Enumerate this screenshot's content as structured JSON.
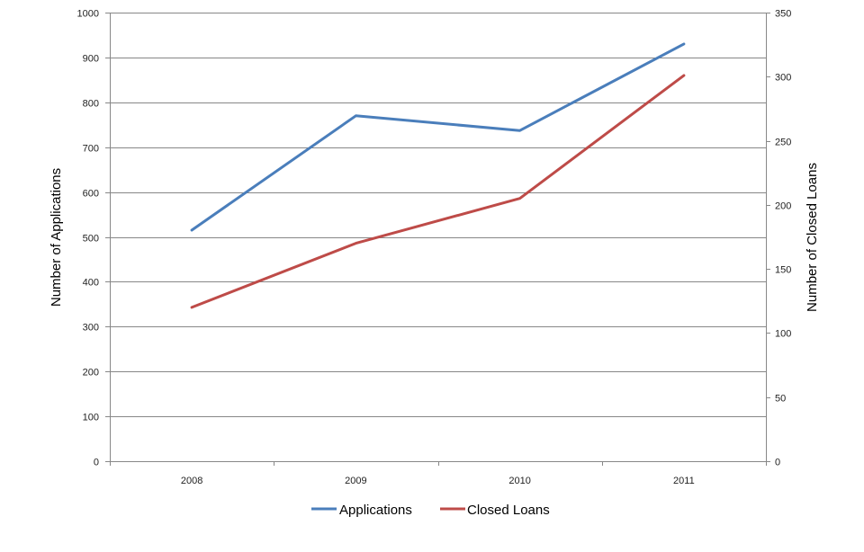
{
  "chart_data": {
    "type": "line",
    "categories": [
      "2008",
      "2009",
      "2010",
      "2011"
    ],
    "series": [
      {
        "name": "Applications",
        "axis": "left",
        "color": "#4a7ebb",
        "values": [
          515,
          770,
          737,
          930
        ]
      },
      {
        "name": "Closed Loans",
        "axis": "right",
        "color": "#be4b48",
        "values": [
          120,
          170,
          205,
          301
        ]
      }
    ],
    "ylabel": "Number of Applications",
    "y2label": "Number of Closed Loans",
    "ylim": [
      0,
      1000
    ],
    "y2lim": [
      0,
      350
    ],
    "yticks": [
      0,
      100,
      200,
      300,
      400,
      500,
      600,
      700,
      800,
      900,
      1000
    ],
    "y2ticks": [
      0,
      50,
      100,
      150,
      200,
      250,
      300,
      350
    ],
    "grid": true,
    "legend": "bottom-center",
    "gridline_color": "#878787"
  }
}
